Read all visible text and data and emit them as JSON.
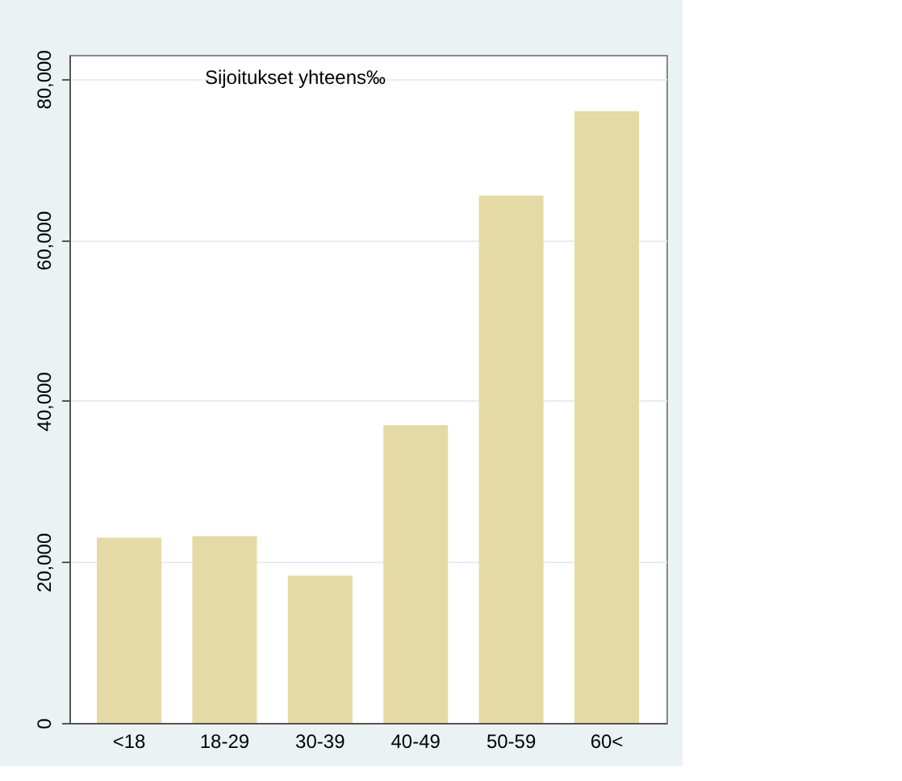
{
  "chart_data": {
    "type": "bar",
    "title": "Sijoitukset yhteens‰",
    "categories": [
      "<18",
      "18-29",
      "30-39",
      "40-49",
      "50-59",
      "60<"
    ],
    "values": [
      23000,
      23200,
      18300,
      37000,
      65500,
      76000
    ],
    "color": "#e5d9a5",
    "ylim": [
      0,
      83000
    ],
    "yticks": [
      0,
      {
        "value": 20000,
        "label": "20,000"
      },
      {
        "value": 40000,
        "label": "40,000"
      },
      {
        "value": 60000,
        "label": "60,000"
      },
      {
        "value": 80000,
        "label": "80,000"
      }
    ],
    "grid": "y"
  }
}
